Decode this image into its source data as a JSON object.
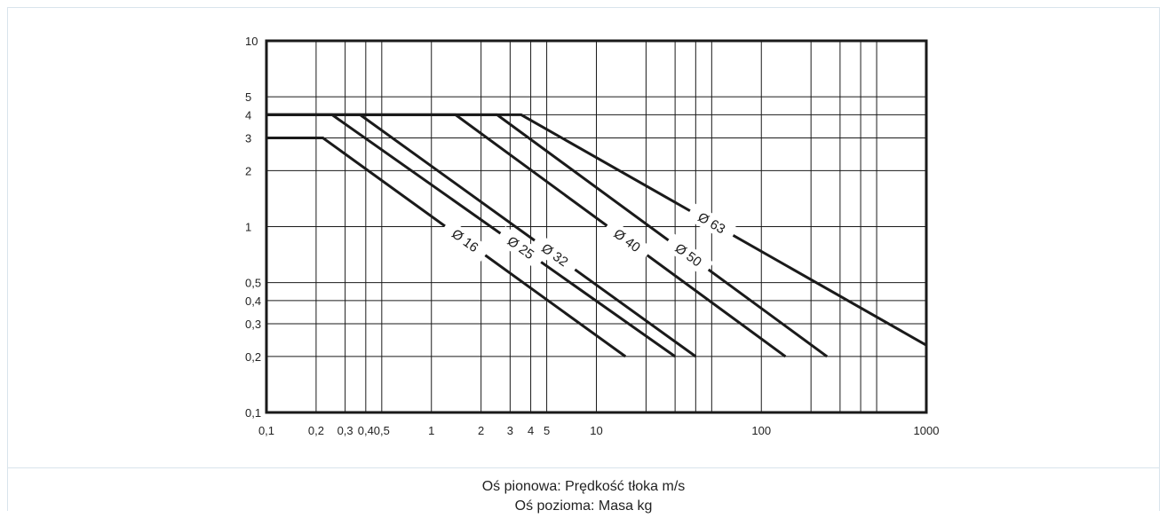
{
  "chart_data": {
    "type": "line",
    "x_scale": "log",
    "y_scale": "log",
    "xlim": [
      0.1,
      1000
    ],
    "ylim": [
      0.1,
      10
    ],
    "grid": true,
    "x_ticks": [
      {
        "value": 0.1,
        "label": "0,1"
      },
      {
        "value": 0.2,
        "label": "0,2"
      },
      {
        "value": 0.3,
        "label": "0,3"
      },
      {
        "value": 0.4,
        "label": "0,4"
      },
      {
        "value": 0.5,
        "label": "0,5"
      },
      {
        "value": 1,
        "label": "1"
      },
      {
        "value": 2,
        "label": "2"
      },
      {
        "value": 3,
        "label": "3"
      },
      {
        "value": 4,
        "label": "4"
      },
      {
        "value": 5,
        "label": "5"
      },
      {
        "value": 10,
        "label": "10"
      },
      {
        "value": 100,
        "label": "100"
      },
      {
        "value": 1000,
        "label": "1000"
      }
    ],
    "x_gridlines": [
      0.2,
      0.3,
      0.4,
      0.5,
      1,
      2,
      3,
      4,
      5,
      10,
      20,
      30,
      40,
      50,
      100,
      200,
      300,
      400,
      500
    ],
    "y_ticks": [
      {
        "value": 0.1,
        "label": "0,1"
      },
      {
        "value": 0.2,
        "label": "0,2"
      },
      {
        "value": 0.3,
        "label": "0,3"
      },
      {
        "value": 0.4,
        "label": "0,4"
      },
      {
        "value": 0.5,
        "label": "0,5"
      },
      {
        "value": 1,
        "label": "1"
      },
      {
        "value": 2,
        "label": "2"
      },
      {
        "value": 3,
        "label": "3"
      },
      {
        "value": 4,
        "label": "4"
      },
      {
        "value": 5,
        "label": "5"
      },
      {
        "value": 10,
        "label": "10"
      }
    ],
    "y_gridlines": [
      0.2,
      0.3,
      0.4,
      0.5,
      1,
      2,
      3,
      4,
      5
    ],
    "series": [
      {
        "name": "Ø 16",
        "x": [
          0.1,
          0.22,
          15
        ],
        "y": [
          3,
          3,
          0.2
        ]
      },
      {
        "name": "Ø 25",
        "x": [
          0.1,
          0.25,
          30
        ],
        "y": [
          4,
          4,
          0.2
        ]
      },
      {
        "name": "Ø 32",
        "x": [
          0.1,
          0.37,
          40
        ],
        "y": [
          4,
          4,
          0.2
        ]
      },
      {
        "name": "Ø 40",
        "x": [
          0.1,
          1.4,
          140
        ],
        "y": [
          4,
          4,
          0.2
        ]
      },
      {
        "name": "Ø 50",
        "x": [
          0.1,
          2.5,
          250
        ],
        "y": [
          4,
          4,
          0.2
        ]
      },
      {
        "name": "Ø 63",
        "x": [
          0.1,
          3.5,
          1000
        ],
        "y": [
          4,
          4,
          0.23
        ]
      }
    ],
    "series_label_positions": [
      {
        "name": "Ø 16",
        "at": 0.47
      },
      {
        "name": "Ø 25",
        "at": 0.55
      },
      {
        "name": "Ø 32",
        "at": 0.58
      },
      {
        "name": "Ø 40",
        "at": 0.52
      },
      {
        "name": "Ø 50",
        "at": 0.58
      },
      {
        "name": "Ø 63",
        "at": 0.47
      }
    ]
  },
  "captions": {
    "vertical_axis": "Oś pionowa: Prędkość tłoka m/s",
    "horizontal_axis": "Oś pozioma: Masa kg"
  },
  "colors": {
    "line": "#1a1a1a",
    "grid": "#1a1a1a",
    "border": "#d9e4ec"
  }
}
